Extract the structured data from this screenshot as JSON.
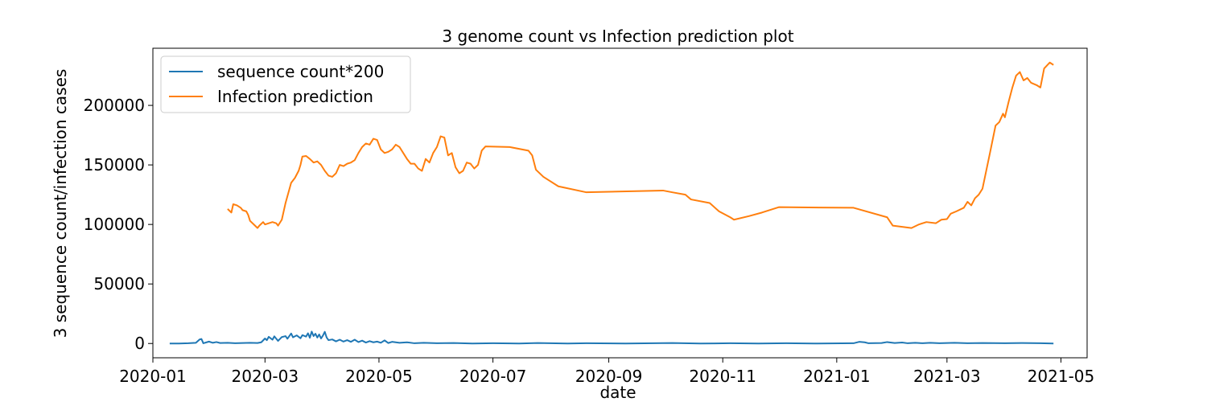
{
  "chart_data": {
    "type": "line",
    "title": "3 genome count vs Infection prediction plot",
    "xlabel": "date",
    "ylabel": "3 sequence count/infection cases",
    "xlim": [
      "2020-01-01",
      "2021-05-15"
    ],
    "ylim": [
      -12000,
      248000
    ],
    "x_ticks": [
      "2020-01",
      "2020-03",
      "2020-05",
      "2020-07",
      "2020-09",
      "2020-11",
      "2021-01",
      "2021-03",
      "2021-05"
    ],
    "y_ticks": [
      0,
      50000,
      100000,
      150000,
      200000
    ],
    "y_tick_labels": [
      "0",
      "50000",
      "100000",
      "150000",
      "200000"
    ],
    "grid": false,
    "legend_position": "upper-left",
    "series": [
      {
        "name": "sequence count*200",
        "color": "#1f77b4",
        "points": [
          [
            "2020-01-10",
            0
          ],
          [
            "2020-01-15",
            0
          ],
          [
            "2020-01-20",
            200
          ],
          [
            "2020-01-24",
            600
          ],
          [
            "2020-01-26",
            3400
          ],
          [
            "2020-01-27",
            3800
          ],
          [
            "2020-01-28",
            200
          ],
          [
            "2020-01-31",
            1600
          ],
          [
            "2020-02-02",
            600
          ],
          [
            "2020-02-04",
            1200
          ],
          [
            "2020-02-06",
            400
          ],
          [
            "2020-02-10",
            600
          ],
          [
            "2020-02-14",
            200
          ],
          [
            "2020-02-18",
            400
          ],
          [
            "2020-02-22",
            600
          ],
          [
            "2020-02-26",
            400
          ],
          [
            "2020-02-28",
            1000
          ],
          [
            "2020-03-01",
            4200
          ],
          [
            "2020-03-02",
            2800
          ],
          [
            "2020-03-03",
            5600
          ],
          [
            "2020-03-05",
            3200
          ],
          [
            "2020-03-06",
            6000
          ],
          [
            "2020-03-08",
            2200
          ],
          [
            "2020-03-10",
            5400
          ],
          [
            "2020-03-12",
            6200
          ],
          [
            "2020-03-13",
            4000
          ],
          [
            "2020-03-15",
            8400
          ],
          [
            "2020-03-16",
            5200
          ],
          [
            "2020-03-18",
            6800
          ],
          [
            "2020-03-20",
            4400
          ],
          [
            "2020-03-21",
            7000
          ],
          [
            "2020-03-23",
            5800
          ],
          [
            "2020-03-24",
            8600
          ],
          [
            "2020-03-25",
            4800
          ],
          [
            "2020-03-26",
            10000
          ],
          [
            "2020-03-27",
            6200
          ],
          [
            "2020-03-28",
            8200
          ],
          [
            "2020-03-29",
            5000
          ],
          [
            "2020-03-30",
            7600
          ],
          [
            "2020-03-31",
            4200
          ],
          [
            "2020-04-01",
            6600
          ],
          [
            "2020-04-02",
            9800
          ],
          [
            "2020-04-03",
            5000
          ],
          [
            "2020-04-04",
            2800
          ],
          [
            "2020-04-06",
            3400
          ],
          [
            "2020-04-08",
            1800
          ],
          [
            "2020-04-10",
            3200
          ],
          [
            "2020-04-12",
            1600
          ],
          [
            "2020-04-14",
            2800
          ],
          [
            "2020-04-16",
            1400
          ],
          [
            "2020-04-18",
            3200
          ],
          [
            "2020-04-20",
            1200
          ],
          [
            "2020-04-22",
            2400
          ],
          [
            "2020-04-24",
            800
          ],
          [
            "2020-04-26",
            2000
          ],
          [
            "2020-04-28",
            1000
          ],
          [
            "2020-04-30",
            1600
          ],
          [
            "2020-05-02",
            600
          ],
          [
            "2020-05-04",
            2600
          ],
          [
            "2020-05-06",
            400
          ],
          [
            "2020-05-08",
            1400
          ],
          [
            "2020-05-12",
            600
          ],
          [
            "2020-05-16",
            1000
          ],
          [
            "2020-05-20",
            200
          ],
          [
            "2020-05-25",
            600
          ],
          [
            "2020-06-01",
            200
          ],
          [
            "2020-06-10",
            400
          ],
          [
            "2020-06-20",
            0
          ],
          [
            "2020-07-01",
            200
          ],
          [
            "2020-07-15",
            0
          ],
          [
            "2020-07-25",
            400
          ],
          [
            "2020-08-10",
            0
          ],
          [
            "2020-08-20",
            200
          ],
          [
            "2020-09-10",
            0
          ],
          [
            "2020-09-25",
            200
          ],
          [
            "2020-10-05",
            400
          ],
          [
            "2020-10-20",
            0
          ],
          [
            "2020-11-05",
            200
          ],
          [
            "2020-11-20",
            0
          ],
          [
            "2020-12-05",
            200
          ],
          [
            "2020-12-20",
            0
          ],
          [
            "2021-01-10",
            200
          ],
          [
            "2021-01-13",
            1400
          ],
          [
            "2021-01-16",
            1000
          ],
          [
            "2021-01-18",
            200
          ],
          [
            "2021-01-25",
            400
          ],
          [
            "2021-01-28",
            1200
          ],
          [
            "2021-02-01",
            400
          ],
          [
            "2021-02-05",
            800
          ],
          [
            "2021-02-08",
            200
          ],
          [
            "2021-02-12",
            600
          ],
          [
            "2021-02-16",
            200
          ],
          [
            "2021-02-20",
            600
          ],
          [
            "2021-02-25",
            200
          ],
          [
            "2021-03-05",
            600
          ],
          [
            "2021-03-12",
            200
          ],
          [
            "2021-03-20",
            400
          ],
          [
            "2021-04-01",
            200
          ],
          [
            "2021-04-10",
            400
          ],
          [
            "2021-04-20",
            200
          ],
          [
            "2021-04-27",
            0
          ]
        ]
      },
      {
        "name": "Infection prediction",
        "color": "#ff7f0e",
        "points": [
          [
            "2020-02-10",
            113000
          ],
          [
            "2020-02-12",
            110000
          ],
          [
            "2020-02-13",
            117000
          ],
          [
            "2020-02-15",
            116000
          ],
          [
            "2020-02-17",
            114000
          ],
          [
            "2020-02-18",
            112000
          ],
          [
            "2020-02-20",
            111000
          ],
          [
            "2020-02-21",
            108000
          ],
          [
            "2020-02-22",
            103000
          ],
          [
            "2020-02-24",
            100000
          ],
          [
            "2020-02-26",
            97000
          ],
          [
            "2020-02-27",
            99000
          ],
          [
            "2020-02-29",
            102000
          ],
          [
            "2020-03-01",
            100000
          ],
          [
            "2020-03-03",
            101000
          ],
          [
            "2020-03-05",
            102000
          ],
          [
            "2020-03-07",
            101000
          ],
          [
            "2020-03-08",
            99000
          ],
          [
            "2020-03-10",
            104000
          ],
          [
            "2020-03-12",
            118000
          ],
          [
            "2020-03-15",
            135000
          ],
          [
            "2020-03-17",
            139000
          ],
          [
            "2020-03-19",
            145000
          ],
          [
            "2020-03-20",
            150000
          ],
          [
            "2020-03-21",
            157000
          ],
          [
            "2020-03-23",
            157500
          ],
          [
            "2020-03-25",
            155000
          ],
          [
            "2020-03-27",
            152000
          ],
          [
            "2020-03-29",
            153000
          ],
          [
            "2020-03-31",
            150000
          ],
          [
            "2020-04-02",
            145000
          ],
          [
            "2020-04-04",
            141000
          ],
          [
            "2020-04-06",
            140000
          ],
          [
            "2020-04-08",
            143000
          ],
          [
            "2020-04-10",
            150000
          ],
          [
            "2020-04-12",
            149000
          ],
          [
            "2020-04-14",
            151000
          ],
          [
            "2020-04-16",
            152000
          ],
          [
            "2020-04-18",
            154000
          ],
          [
            "2020-04-20",
            160000
          ],
          [
            "2020-04-22",
            165000
          ],
          [
            "2020-04-24",
            168000
          ],
          [
            "2020-04-26",
            167000
          ],
          [
            "2020-04-28",
            172000
          ],
          [
            "2020-04-30",
            171000
          ],
          [
            "2020-05-02",
            163000
          ],
          [
            "2020-05-04",
            160000
          ],
          [
            "2020-05-06",
            161000
          ],
          [
            "2020-05-08",
            163000
          ],
          [
            "2020-05-10",
            167000
          ],
          [
            "2020-05-12",
            165000
          ],
          [
            "2020-05-14",
            160000
          ],
          [
            "2020-05-16",
            155000
          ],
          [
            "2020-05-18",
            151000
          ],
          [
            "2020-05-20",
            151000
          ],
          [
            "2020-05-22",
            147000
          ],
          [
            "2020-05-24",
            145000
          ],
          [
            "2020-05-26",
            155000
          ],
          [
            "2020-05-28",
            152000
          ],
          [
            "2020-05-30",
            160000
          ],
          [
            "2020-06-01",
            165000
          ],
          [
            "2020-06-03",
            174000
          ],
          [
            "2020-06-05",
            173000
          ],
          [
            "2020-06-07",
            158000
          ],
          [
            "2020-06-09",
            160000
          ],
          [
            "2020-06-11",
            148000
          ],
          [
            "2020-06-13",
            143000
          ],
          [
            "2020-06-15",
            145000
          ],
          [
            "2020-06-17",
            152000
          ],
          [
            "2020-06-19",
            151000
          ],
          [
            "2020-06-21",
            147000
          ],
          [
            "2020-06-23",
            150000
          ],
          [
            "2020-06-25",
            162000
          ],
          [
            "2020-06-27",
            165500
          ],
          [
            "2020-07-10",
            165000
          ],
          [
            "2020-07-20",
            162000
          ],
          [
            "2020-07-22",
            158000
          ],
          [
            "2020-07-24",
            146000
          ],
          [
            "2020-07-28",
            140000
          ],
          [
            "2020-08-05",
            132000
          ],
          [
            "2020-08-20",
            127000
          ],
          [
            "2020-09-30",
            128500
          ],
          [
            "2020-10-05",
            127000
          ],
          [
            "2020-10-12",
            125000
          ],
          [
            "2020-10-15",
            121000
          ],
          [
            "2020-10-25",
            118000
          ],
          [
            "2020-10-30",
            111000
          ],
          [
            "2020-11-05",
            106000
          ],
          [
            "2020-11-07",
            104000
          ],
          [
            "2020-11-15",
            107000
          ],
          [
            "2020-11-22",
            110000
          ],
          [
            "2020-12-01",
            114500
          ],
          [
            "2021-01-10",
            114000
          ],
          [
            "2021-01-28",
            106000
          ],
          [
            "2021-01-31",
            99000
          ],
          [
            "2021-02-10",
            97000
          ],
          [
            "2021-02-14",
            100000
          ],
          [
            "2021-02-18",
            102000
          ],
          [
            "2021-02-23",
            101000
          ],
          [
            "2021-02-26",
            104000
          ],
          [
            "2021-03-01",
            104500
          ],
          [
            "2021-03-03",
            109000
          ],
          [
            "2021-03-06",
            111000
          ],
          [
            "2021-03-10",
            114000
          ],
          [
            "2021-03-12",
            119000
          ],
          [
            "2021-03-14",
            116000
          ],
          [
            "2021-03-16",
            122000
          ],
          [
            "2021-03-18",
            125000
          ],
          [
            "2021-03-20",
            130000
          ],
          [
            "2021-03-22",
            145000
          ],
          [
            "2021-03-24",
            160000
          ],
          [
            "2021-03-27",
            183000
          ],
          [
            "2021-03-29",
            186000
          ],
          [
            "2021-03-31",
            193000
          ],
          [
            "2021-04-01",
            190000
          ],
          [
            "2021-04-03",
            203000
          ],
          [
            "2021-04-05",
            215000
          ],
          [
            "2021-04-07",
            225000
          ],
          [
            "2021-04-09",
            228000
          ],
          [
            "2021-04-11",
            221000
          ],
          [
            "2021-04-13",
            223000
          ],
          [
            "2021-04-15",
            219000
          ],
          [
            "2021-04-18",
            217000
          ],
          [
            "2021-04-20",
            215000
          ],
          [
            "2021-04-22",
            231000
          ],
          [
            "2021-04-25",
            236000
          ],
          [
            "2021-04-27",
            234000
          ]
        ]
      }
    ]
  }
}
